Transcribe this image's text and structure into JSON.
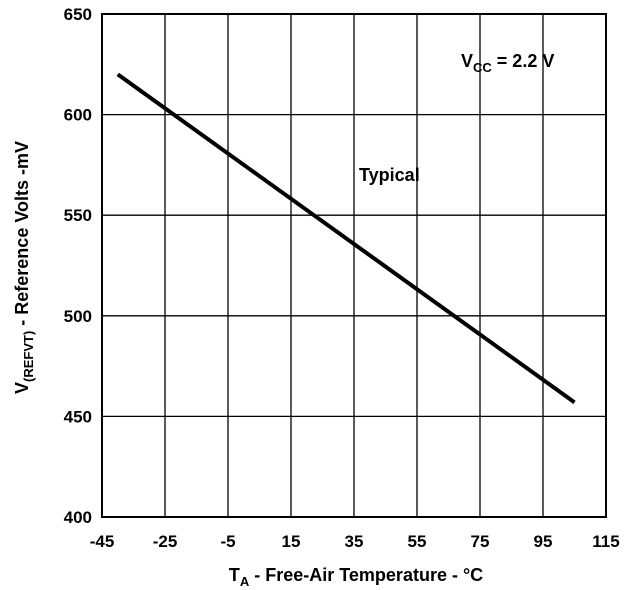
{
  "chart_data": {
    "type": "line",
    "x_ticks": [
      "-45",
      "-25",
      "-5",
      "15",
      "35",
      "55",
      "75",
      "95",
      "115"
    ],
    "y_ticks": [
      "400",
      "450",
      "500",
      "550",
      "600",
      "650"
    ],
    "xlim": [
      -45,
      115
    ],
    "ylim": [
      400,
      650
    ],
    "grid": true,
    "xlabel": {
      "main": "T",
      "sub": "A",
      "rest": " - Free-Air Temperature - °C"
    },
    "ylabel": {
      "main": "V",
      "sub": "(REFVT)",
      "rest": " - Reference Volts -mV"
    },
    "annotations": {
      "vcc": {
        "main": "V",
        "sub": "CC",
        "rest": " = 2.2 V"
      },
      "typical": "Typical"
    },
    "series": [
      {
        "x": [
          -40,
          105
        ],
        "y": [
          620,
          457
        ],
        "color": "#000000"
      }
    ]
  }
}
